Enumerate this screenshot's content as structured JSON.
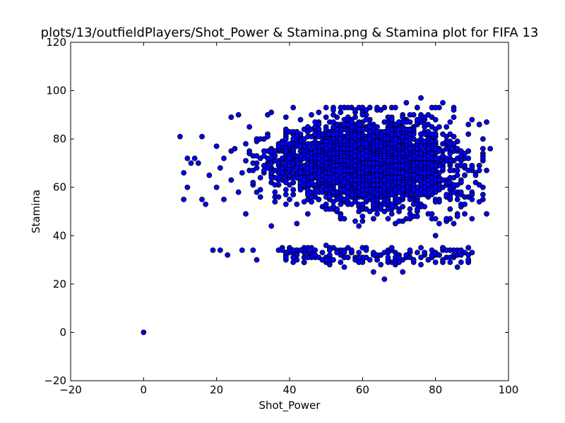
{
  "chart_data": {
    "type": "scatter",
    "title": "plots/13/outfieldPlayers/Shot_Power & Stamina.png & Stamina plot for FIFA 13",
    "xlabel": "Shot_Power",
    "ylabel": "Stamina",
    "xlim": [
      -20,
      100
    ],
    "ylim": [
      -20,
      120
    ],
    "x_ticks": [
      -20,
      0,
      20,
      40,
      60,
      80,
      100
    ],
    "y_ticks": [
      -20,
      0,
      20,
      40,
      60,
      80,
      100,
      120
    ],
    "x_tick_labels": [
      "−20",
      "0",
      "20",
      "40",
      "60",
      "80",
      "100"
    ],
    "y_tick_labels": [
      "−20",
      "0",
      "20",
      "40",
      "60",
      "80",
      "100",
      "120"
    ],
    "grid": false,
    "marker_color": "#0000ff",
    "marker_edge_color": "#000000",
    "points": [
      {
        "x": 0,
        "y": 0
      },
      {
        "x": 10,
        "y": 81
      },
      {
        "x": 11,
        "y": 66
      },
      {
        "x": 11,
        "y": 55
      },
      {
        "x": 12,
        "y": 72
      },
      {
        "x": 12,
        "y": 60
      },
      {
        "x": 13,
        "y": 70
      },
      {
        "x": 14,
        "y": 72
      },
      {
        "x": 15,
        "y": 70
      },
      {
        "x": 16,
        "y": 81
      },
      {
        "x": 16,
        "y": 55
      },
      {
        "x": 17,
        "y": 53
      },
      {
        "x": 18,
        "y": 65
      },
      {
        "x": 19,
        "y": 34
      },
      {
        "x": 20,
        "y": 77
      },
      {
        "x": 20,
        "y": 60
      },
      {
        "x": 21,
        "y": 68
      },
      {
        "x": 21,
        "y": 34
      },
      {
        "x": 22,
        "y": 72
      },
      {
        "x": 22,
        "y": 55
      },
      {
        "x": 23,
        "y": 32
      },
      {
        "x": 24,
        "y": 89
      },
      {
        "x": 24,
        "y": 63
      },
      {
        "x": 25,
        "y": 76
      },
      {
        "x": 26,
        "y": 90
      },
      {
        "x": 26,
        "y": 58
      },
      {
        "x": 27,
        "y": 66
      },
      {
        "x": 27,
        "y": 34
      },
      {
        "x": 28,
        "y": 71
      },
      {
        "x": 28,
        "y": 49
      },
      {
        "x": 29,
        "y": 85
      },
      {
        "x": 30,
        "y": 62
      },
      {
        "x": 30,
        "y": 34
      },
      {
        "x": 31,
        "y": 73
      },
      {
        "x": 31,
        "y": 30
      },
      {
        "x": 32,
        "y": 80
      },
      {
        "x": 32,
        "y": 56
      },
      {
        "x": 33,
        "y": 67
      },
      {
        "x": 34,
        "y": 90
      },
      {
        "x": 35,
        "y": 91
      },
      {
        "x": 35,
        "y": 44
      },
      {
        "x": 36,
        "y": 61
      },
      {
        "x": 37,
        "y": 34
      },
      {
        "x": 38,
        "y": 78
      },
      {
        "x": 38,
        "y": 34
      },
      {
        "x": 39,
        "y": 31
      },
      {
        "x": 40,
        "y": 69
      },
      {
        "x": 41,
        "y": 93
      },
      {
        "x": 41,
        "y": 34
      },
      {
        "x": 42,
        "y": 45
      },
      {
        "x": 43,
        "y": 88
      },
      {
        "x": 43,
        "y": 34
      },
      {
        "x": 44,
        "y": 63
      },
      {
        "x": 45,
        "y": 31
      },
      {
        "x": 46,
        "y": 90
      },
      {
        "x": 47,
        "y": 32
      },
      {
        "x": 48,
        "y": 55
      },
      {
        "x": 49,
        "y": 30
      },
      {
        "x": 50,
        "y": 93
      },
      {
        "x": 50,
        "y": 36
      },
      {
        "x": 51,
        "y": 28
      },
      {
        "x": 52,
        "y": 72
      },
      {
        "x": 53,
        "y": 33
      },
      {
        "x": 54,
        "y": 93
      },
      {
        "x": 55,
        "y": 27
      },
      {
        "x": 56,
        "y": 60
      },
      {
        "x": 57,
        "y": 34
      },
      {
        "x": 58,
        "y": 92
      },
      {
        "x": 59,
        "y": 31
      },
      {
        "x": 60,
        "y": 46
      },
      {
        "x": 61,
        "y": 34
      },
      {
        "x": 62,
        "y": 93
      },
      {
        "x": 63,
        "y": 25
      },
      {
        "x": 64,
        "y": 30
      },
      {
        "x": 65,
        "y": 28
      },
      {
        "x": 66,
        "y": 22
      },
      {
        "x": 67,
        "y": 31
      },
      {
        "x": 68,
        "y": 93
      },
      {
        "x": 69,
        "y": 28
      },
      {
        "x": 70,
        "y": 46
      },
      {
        "x": 71,
        "y": 25
      },
      {
        "x": 72,
        "y": 95
      },
      {
        "x": 73,
        "y": 34
      },
      {
        "x": 74,
        "y": 30
      },
      {
        "x": 75,
        "y": 93
      },
      {
        "x": 76,
        "y": 97
      },
      {
        "x": 76,
        "y": 28
      },
      {
        "x": 77,
        "y": 33
      },
      {
        "x": 78,
        "y": 30
      },
      {
        "x": 79,
        "y": 47
      },
      {
        "x": 80,
        "y": 93
      },
      {
        "x": 81,
        "y": 32
      },
      {
        "x": 82,
        "y": 95
      },
      {
        "x": 83,
        "y": 47
      },
      {
        "x": 84,
        "y": 31
      },
      {
        "x": 85,
        "y": 92
      },
      {
        "x": 86,
        "y": 27
      },
      {
        "x": 86,
        "y": 48
      },
      {
        "x": 87,
        "y": 52
      },
      {
        "x": 88,
        "y": 74
      },
      {
        "x": 89,
        "y": 30
      },
      {
        "x": 90,
        "y": 88
      },
      {
        "x": 91,
        "y": 62
      },
      {
        "x": 92,
        "y": 86
      },
      {
        "x": 93,
        "y": 72
      },
      {
        "x": 94,
        "y": 49
      },
      {
        "x": 94,
        "y": 67
      },
      {
        "x": 95,
        "y": 76
      },
      {
        "x": 94,
        "y": 87
      }
    ]
  }
}
